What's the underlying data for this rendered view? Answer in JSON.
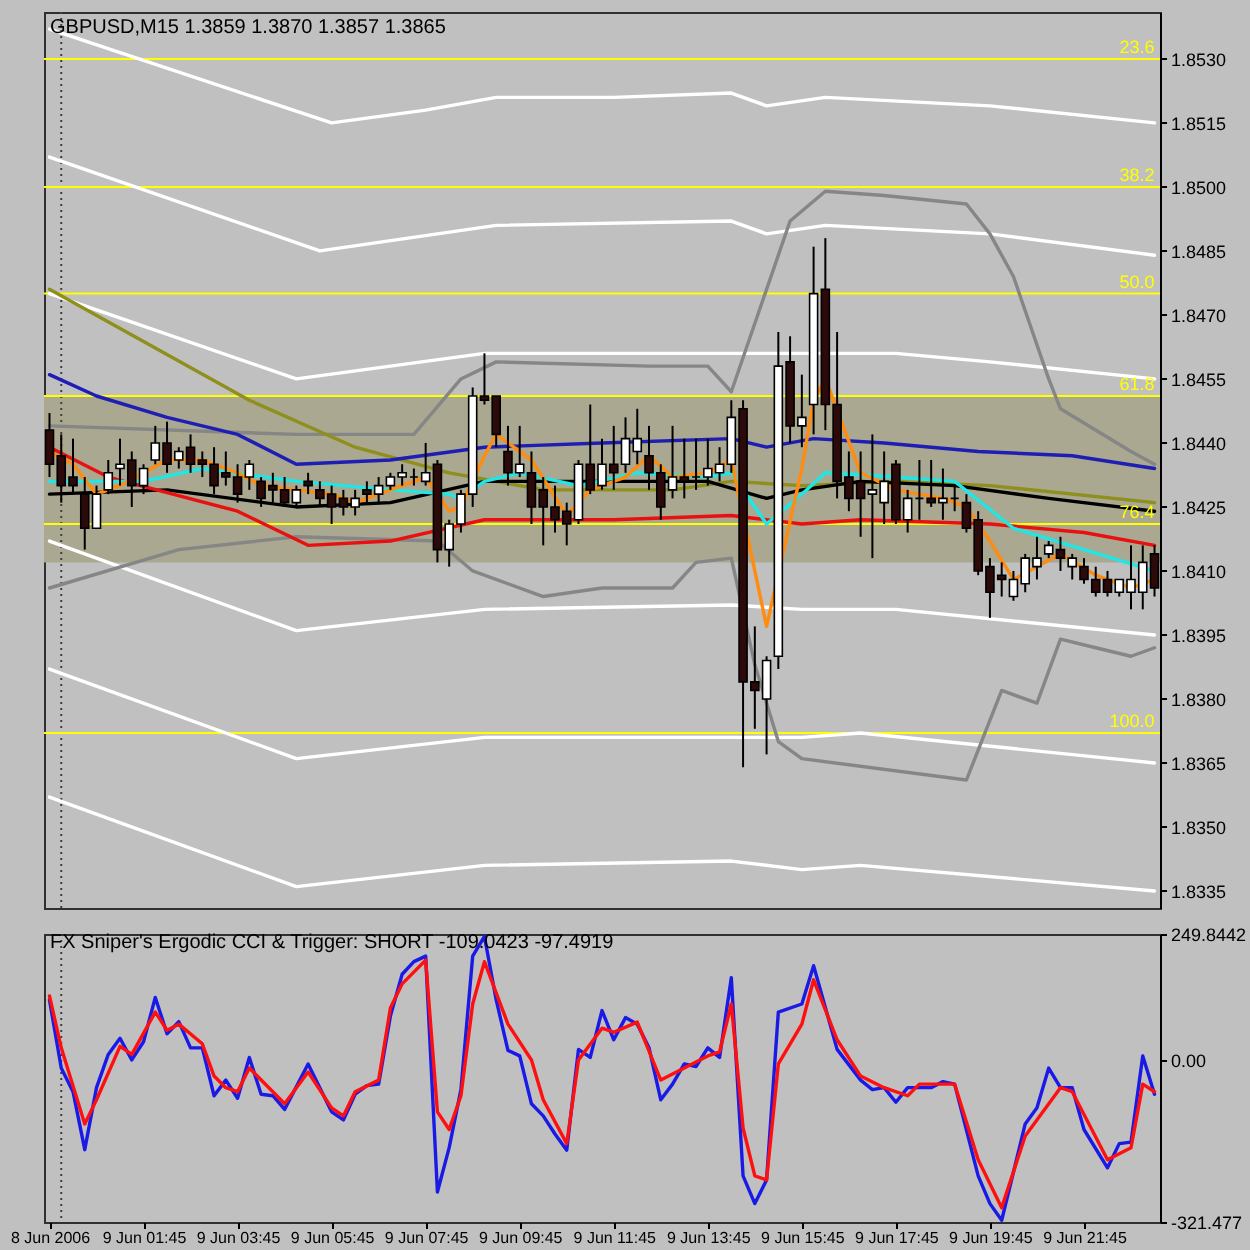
{
  "chart_data": [
    {
      "type": "candlestick",
      "title": "GBPUSD,M15 1.3859 1.3870 1.3857 1.3865",
      "x": [
        "2006-06-08T23:45",
        "2006-06-09T00:00",
        "2006-06-09T00:15",
        "2006-06-09T00:30",
        "2006-06-09T00:45",
        "2006-06-09T01:00",
        "2006-06-09T01:15",
        "2006-06-09T01:30",
        "2006-06-09T01:45",
        "2006-06-09T02:00",
        "2006-06-09T02:15",
        "2006-06-09T02:30",
        "2006-06-09T02:45",
        "2006-06-09T03:00",
        "2006-06-09T03:15",
        "2006-06-09T03:30",
        "2006-06-09T03:45",
        "2006-06-09T04:00",
        "2006-06-09T04:15",
        "2006-06-09T04:30",
        "2006-06-09T04:45",
        "2006-06-09T05:00",
        "2006-06-09T05:15",
        "2006-06-09T05:30",
        "2006-06-09T05:45",
        "2006-06-09T06:00",
        "2006-06-09T06:15",
        "2006-06-09T06:30",
        "2006-06-09T06:45",
        "2006-06-09T07:00",
        "2006-06-09T07:15",
        "2006-06-09T07:30",
        "2006-06-09T07:45",
        "2006-06-09T08:00",
        "2006-06-09T08:15",
        "2006-06-09T08:30",
        "2006-06-09T08:45",
        "2006-06-09T09:00",
        "2006-06-09T09:15",
        "2006-06-09T09:30",
        "2006-06-09T09:45",
        "2006-06-09T10:00",
        "2006-06-09T10:15",
        "2006-06-09T10:30",
        "2006-06-09T10:45",
        "2006-06-09T11:00",
        "2006-06-09T11:15",
        "2006-06-09T11:30",
        "2006-06-09T11:45",
        "2006-06-09T12:00",
        "2006-06-09T12:15",
        "2006-06-09T12:30",
        "2006-06-09T12:45",
        "2006-06-09T13:00",
        "2006-06-09T13:15",
        "2006-06-09T13:30",
        "2006-06-09T13:45",
        "2006-06-09T14:00",
        "2006-06-09T14:15",
        "2006-06-09T14:30",
        "2006-06-09T14:45",
        "2006-06-09T15:00",
        "2006-06-09T15:15",
        "2006-06-09T15:30",
        "2006-06-09T15:45",
        "2006-06-09T16:00",
        "2006-06-09T16:15",
        "2006-06-09T16:30",
        "2006-06-09T16:45",
        "2006-06-09T17:00",
        "2006-06-09T17:15",
        "2006-06-09T17:30",
        "2006-06-09T17:45",
        "2006-06-09T18:00",
        "2006-06-09T18:15",
        "2006-06-09T18:30",
        "2006-06-09T18:45",
        "2006-06-09T19:00",
        "2006-06-09T19:15",
        "2006-06-09T19:30",
        "2006-06-09T19:45",
        "2006-06-09T20:00",
        "2006-06-09T20:15",
        "2006-06-09T20:30",
        "2006-06-09T20:45",
        "2006-06-09T21:00",
        "2006-06-09T21:15",
        "2006-06-09T21:30",
        "2006-06-09T21:45",
        "2006-06-09T22:00",
        "2006-06-09T22:15",
        "2006-06-09T22:30",
        "2006-06-09T22:45",
        "2006-06-09T23:00",
        "2006-06-09T23:15"
      ],
      "ohlc": [
        [
          1.8443,
          1.8447,
          1.8432,
          1.8435
        ],
        [
          1.8437,
          1.8442,
          1.8426,
          1.843
        ],
        [
          1.8432,
          1.8441,
          1.8428,
          1.843
        ],
        [
          1.8428,
          1.8432,
          1.8415,
          1.842
        ],
        [
          1.842,
          1.843,
          1.842,
          1.8428
        ],
        [
          1.8429,
          1.8436,
          1.8428,
          1.8433
        ],
        [
          1.8434,
          1.8441,
          1.843,
          1.8435
        ],
        [
          1.8436,
          1.8438,
          1.8425,
          1.843
        ],
        [
          1.843,
          1.8435,
          1.8428,
          1.8434
        ],
        [
          1.8436,
          1.8444,
          1.8435,
          1.844
        ],
        [
          1.844,
          1.8445,
          1.8433,
          1.8435
        ],
        [
          1.8436,
          1.8439,
          1.8434,
          1.8438
        ],
        [
          1.8439,
          1.8442,
          1.8433,
          1.8435
        ],
        [
          1.8436,
          1.8438,
          1.8432,
          1.8435
        ],
        [
          1.8435,
          1.8439,
          1.8428,
          1.843
        ],
        [
          1.8433,
          1.8438,
          1.843,
          1.8432
        ],
        [
          1.8432,
          1.8435,
          1.8426,
          1.8428
        ],
        [
          1.8432,
          1.8436,
          1.8429,
          1.8435
        ],
        [
          1.8431,
          1.8432,
          1.8425,
          1.8427
        ],
        [
          1.843,
          1.8433,
          1.8426,
          1.8429
        ],
        [
          1.8429,
          1.8432,
          1.8425,
          1.8426
        ],
        [
          1.8426,
          1.843,
          1.8425,
          1.8429
        ],
        [
          1.8431,
          1.8433,
          1.8428,
          1.843
        ],
        [
          1.8429,
          1.8431,
          1.8425,
          1.8427
        ],
        [
          1.8428,
          1.843,
          1.8421,
          1.8425
        ],
        [
          1.8427,
          1.8429,
          1.8423,
          1.8425
        ],
        [
          1.8425,
          1.8429,
          1.8423,
          1.8427
        ],
        [
          1.8429,
          1.8431,
          1.8426,
          1.8428
        ],
        [
          1.8428,
          1.8432,
          1.8426,
          1.843
        ],
        [
          1.843,
          1.8433,
          1.8429,
          1.8432
        ],
        [
          1.8432,
          1.8435,
          1.843,
          1.8433
        ],
        [
          1.8432,
          1.8434,
          1.843,
          1.8432
        ],
        [
          1.8431,
          1.844,
          1.843,
          1.8433
        ],
        [
          1.8435,
          1.8436,
          1.8412,
          1.8415
        ],
        [
          1.8415,
          1.8422,
          1.8411,
          1.8421
        ],
        [
          1.8421,
          1.8429,
          1.8419,
          1.8428
        ],
        [
          1.8428,
          1.8453,
          1.8425,
          1.8451
        ],
        [
          1.8451,
          1.8461,
          1.8449,
          1.845
        ],
        [
          1.8451,
          1.8451,
          1.8439,
          1.8442
        ],
        [
          1.8438,
          1.8444,
          1.843,
          1.8433
        ],
        [
          1.8433,
          1.8444,
          1.8432,
          1.8435
        ],
        [
          1.8433,
          1.8438,
          1.8421,
          1.8425
        ],
        [
          1.8429,
          1.8432,
          1.8416,
          1.8425
        ],
        [
          1.8425,
          1.843,
          1.8419,
          1.8422
        ],
        [
          1.8424,
          1.8426,
          1.8416,
          1.8421
        ],
        [
          1.8422,
          1.8436,
          1.8421,
          1.8435
        ],
        [
          1.8435,
          1.8449,
          1.8428,
          1.8429
        ],
        [
          1.843,
          1.8441,
          1.8429,
          1.8435
        ],
        [
          1.8435,
          1.8444,
          1.8429,
          1.8433
        ],
        [
          1.8435,
          1.8446,
          1.8433,
          1.8441
        ],
        [
          1.8438,
          1.8448,
          1.8435,
          1.8441
        ],
        [
          1.8437,
          1.8444,
          1.8429,
          1.8433
        ],
        [
          1.8433,
          1.8435,
          1.8422,
          1.8425
        ],
        [
          1.8429,
          1.8444,
          1.8427,
          1.8432
        ],
        [
          1.8432,
          1.8441,
          1.8427,
          1.8431
        ],
        [
          1.8432,
          1.8441,
          1.8429,
          1.8432
        ],
        [
          1.8432,
          1.8441,
          1.843,
          1.8434
        ],
        [
          1.8433,
          1.8439,
          1.8431,
          1.8435
        ],
        [
          1.8435,
          1.845,
          1.8433,
          1.8446
        ],
        [
          1.8448,
          1.845,
          1.8364,
          1.8384
        ],
        [
          1.8384,
          1.8397,
          1.8373,
          1.8382
        ],
        [
          1.838,
          1.839,
          1.8367,
          1.8389
        ],
        [
          1.839,
          1.8466,
          1.8387,
          1.8458
        ],
        [
          1.8459,
          1.8465,
          1.844,
          1.8444
        ],
        [
          1.8444,
          1.8456,
          1.8439,
          1.8446
        ],
        [
          1.8449,
          1.8486,
          1.8442,
          1.8475
        ],
        [
          1.8476,
          1.8488,
          1.8443,
          1.8449
        ],
        [
          1.8449,
          1.8466,
          1.8427,
          1.8431
        ],
        [
          1.8432,
          1.8438,
          1.8424,
          1.8427
        ],
        [
          1.8431,
          1.8438,
          1.8418,
          1.8427
        ],
        [
          1.8428,
          1.8442,
          1.8413,
          1.8429
        ],
        [
          1.8426,
          1.8438,
          1.8421,
          1.8431
        ],
        [
          1.8435,
          1.8436,
          1.8421,
          1.8422
        ],
        [
          1.8422,
          1.8429,
          1.8419,
          1.8427
        ],
        [
          1.8427,
          1.8436,
          1.8422,
          1.8427
        ],
        [
          1.8427,
          1.8436,
          1.8425,
          1.8426
        ],
        [
          1.8426,
          1.8434,
          1.8422,
          1.8427
        ],
        [
          1.8427,
          1.843,
          1.8424,
          1.8427
        ],
        [
          1.8426,
          1.8428,
          1.8419,
          1.842
        ],
        [
          1.8422,
          1.8424,
          1.8409,
          1.841
        ],
        [
          1.8411,
          1.8413,
          1.8399,
          1.8405
        ],
        [
          1.8409,
          1.8412,
          1.8404,
          1.8408
        ],
        [
          1.8404,
          1.841,
          1.8403,
          1.8408
        ],
        [
          1.8407,
          1.8414,
          1.8405,
          1.8413
        ],
        [
          1.8411,
          1.8418,
          1.8408,
          1.8413
        ],
        [
          1.8414,
          1.8417,
          1.8413,
          1.8416
        ],
        [
          1.8415,
          1.8418,
          1.841,
          1.8413
        ],
        [
          1.8411,
          1.8414,
          1.8408,
          1.8413
        ],
        [
          1.8411,
          1.8413,
          1.8407,
          1.8408
        ],
        [
          1.8408,
          1.8411,
          1.8404,
          1.8405
        ],
        [
          1.8408,
          1.841,
          1.8404,
          1.8405
        ],
        [
          1.8405,
          1.8408,
          1.8404,
          1.8408
        ],
        [
          1.8405,
          1.8416,
          1.8401,
          1.8408
        ],
        [
          1.8405,
          1.8416,
          1.8401,
          1.8412
        ],
        [
          1.8414,
          1.8416,
          1.8404,
          1.8406
        ]
      ],
      "colors": [
        "#2c0a0a",
        "#2c0a0a",
        "#2c0a0a",
        "#2c0a0a",
        "#ffffff",
        "#ffffff",
        "#ffffff",
        "#2c0a0a",
        "#ffffff",
        "#ffffff",
        "#2c0a0a",
        "#ffffff",
        "#2c0a0a",
        "#2c0a0a",
        "#2c0a0a",
        "#2c0a0a",
        "#2c0a0a",
        "#ffffff",
        "#2c0a0a",
        "#2c0a0a",
        "#2c0a0a",
        "#ffffff",
        "#2c0a0a",
        "#2c0a0a",
        "#2c0a0a",
        "#2c0a0a",
        "#ffffff",
        "#2c0a0a",
        "#ffffff",
        "#ffffff",
        "#ffffff",
        "#000000",
        "#ffffff",
        "#2c0a0a",
        "#ffffff",
        "#ffffff",
        "#ffffff",
        "#2c0a0a",
        "#2c0a0a",
        "#2c0a0a",
        "#ffffff",
        "#2c0a0a",
        "#2c0a0a",
        "#2c0a0a",
        "#2c0a0a",
        "#ffffff",
        "#2c0a0a",
        "#ffffff",
        "#2c0a0a",
        "#ffffff",
        "#ffffff",
        "#2c0a0a",
        "#2c0a0a",
        "#ffffff",
        "#2c0a0a",
        "#000000",
        "#ffffff",
        "#ffffff",
        "#ffffff",
        "#2c0a0a",
        "#2c0a0a",
        "#ffffff",
        "#ffffff",
        "#2c0a0a",
        "#ffffff",
        "#ffffff",
        "#2c0a0a",
        "#2c0a0a",
        "#2c0a0a",
        "#2c0a0a",
        "#ffffff",
        "#ffffff",
        "#2c0a0a",
        "#ffffff",
        "#000000",
        "#2c0a0a",
        "#ffffff",
        "#000000",
        "#2c0a0a",
        "#2c0a0a",
        "#2c0a0a",
        "#2c0a0a",
        "#ffffff",
        "#ffffff",
        "#ffffff",
        "#ffffff",
        "#2c0a0a",
        "#ffffff",
        "#2c0a0a",
        "#2c0a0a",
        "#2c0a0a",
        "#ffffff",
        "#ffffff",
        "#ffffff",
        "#2c0a0a"
      ],
      "series": [
        {
          "type": "line",
          "color": "#ffffff",
          "x": [
            "2006-06-08T23:45",
            "2006-06-09T05:45",
            "2006-06-09T07:45",
            "2006-06-09T09:15",
            "2006-06-09T11:45",
            "2006-06-09T14:15",
            "2006-06-09T15:00",
            "2006-06-09T16:15",
            "2006-06-09T19:45",
            "2006-06-09T23:15"
          ],
          "values": [
            1.8537,
            1.8515,
            1.8518,
            1.8521,
            1.8521,
            1.8522,
            1.8519,
            1.8521,
            1.8519,
            1.8515
          ]
        },
        {
          "type": "line",
          "color": "#ffffff",
          "x": [
            "2006-06-08T23:45",
            "2006-06-09T05:30",
            "2006-06-09T09:15",
            "2006-06-09T14:15",
            "2006-06-09T15:00",
            "2006-06-09T16:15",
            "2006-06-09T19:45",
            "2006-06-09T23:15"
          ],
          "values": [
            1.8507,
            1.8485,
            1.8491,
            1.8492,
            1.8489,
            1.8491,
            1.8489,
            1.8484
          ]
        },
        {
          "type": "line",
          "color": "#ffffff",
          "x": [
            "2006-06-08T23:45",
            "2006-06-09T05:00",
            "2006-06-09T09:00",
            "2006-06-09T14:15",
            "2006-06-09T15:45",
            "2006-06-09T17:45",
            "2006-06-09T19:45",
            "2006-06-09T23:15"
          ],
          "values": [
            1.8475,
            1.8455,
            1.8461,
            1.8461,
            1.8461,
            1.8461,
            1.8459,
            1.8455
          ]
        },
        {
          "type": "line",
          "color": "#ffffff",
          "x": [
            "2006-06-08T23:45",
            "2006-06-09T05:00",
            "2006-06-09T09:00",
            "2006-06-09T14:15",
            "2006-06-09T15:45",
            "2006-06-09T17:45",
            "2006-06-09T23:15"
          ],
          "values": [
            1.8417,
            1.8396,
            1.8401,
            1.8402,
            1.8401,
            1.8401,
            1.8395
          ]
        },
        {
          "type": "line",
          "color": "#ffffff",
          "x": [
            "2006-06-08T23:45",
            "2006-06-09T05:00",
            "2006-06-09T09:00",
            "2006-06-09T14:15",
            "2006-06-09T15:45",
            "2006-06-09T17:00",
            "2006-06-09T23:15"
          ],
          "values": [
            1.8387,
            1.8366,
            1.8371,
            1.8371,
            1.8371,
            1.8372,
            1.8365
          ]
        },
        {
          "type": "line",
          "color": "#ffffff",
          "x": [
            "2006-06-08T23:45",
            "2006-06-09T05:00",
            "2006-06-09T09:00",
            "2006-06-09T14:15",
            "2006-06-09T15:45",
            "2006-06-09T17:00",
            "2006-06-09T23:15"
          ],
          "values": [
            1.8357,
            1.8336,
            1.8341,
            1.8342,
            1.834,
            1.8341,
            1.8335
          ]
        },
        {
          "type": "line",
          "color": "#868686",
          "x": [
            "2006-06-08T23:45",
            "2006-06-09T05:00",
            "2006-06-09T07:30",
            "2006-06-09T08:30",
            "2006-06-09T09:15",
            "2006-06-09T12:30",
            "2006-06-09T13:45",
            "2006-06-09T14:15",
            "2006-06-09T15:00",
            "2006-06-09T15:30",
            "2006-06-09T16:15",
            "2006-06-09T17:30",
            "2006-06-09T19:15",
            "2006-06-09T19:45",
            "2006-06-09T20:15",
            "2006-06-09T21:00",
            "2006-06-09T21:15",
            "2006-06-09T22:45",
            "2006-06-09T23:15"
          ],
          "values": [
            1.8444,
            1.8442,
            1.8442,
            1.8455,
            1.8459,
            1.8458,
            1.8458,
            1.8452,
            1.8476,
            1.8492,
            1.8499,
            1.8498,
            1.8496,
            1.8489,
            1.8479,
            1.8455,
            1.8448,
            1.8438,
            1.8435
          ]
        },
        {
          "type": "line",
          "color": "#868686",
          "x": [
            "2006-06-08T23:45",
            "2006-06-09T02:30",
            "2006-06-09T05:00",
            "2006-06-09T08:00",
            "2006-06-09T08:45",
            "2006-06-09T10:15",
            "2006-06-09T11:30",
            "2006-06-09T13:00",
            "2006-06-09T13:30",
            "2006-06-09T14:15",
            "2006-06-09T14:45",
            "2006-06-09T15:15",
            "2006-06-09T15:45",
            "2006-06-09T19:15",
            "2006-06-09T20:00",
            "2006-06-09T20:45",
            "2006-06-09T21:15",
            "2006-06-09T22:00",
            "2006-06-09T22:45",
            "2006-06-09T23:15"
          ],
          "values": [
            1.8406,
            1.8415,
            1.8418,
            1.8417,
            1.841,
            1.8404,
            1.8406,
            1.8406,
            1.8412,
            1.8413,
            1.8388,
            1.837,
            1.8366,
            1.8361,
            1.8382,
            1.8379,
            1.8394,
            1.8392,
            1.839,
            1.8392
          ]
        },
        {
          "type": "line",
          "color": "#8f8f1e",
          "x": [
            "2006-06-08T23:45",
            "2006-06-09T04:00",
            "2006-06-09T06:15",
            "2006-06-09T08:15",
            "2006-06-09T10:15",
            "2006-06-09T13:00",
            "2006-06-09T14:15",
            "2006-06-09T15:45",
            "2006-06-09T17:45",
            "2006-06-09T19:45",
            "2006-06-09T23:15"
          ],
          "values": [
            1.8476,
            1.845,
            1.8439,
            1.8433,
            1.8429,
            1.8429,
            1.8431,
            1.843,
            1.8431,
            1.843,
            1.8426
          ]
        },
        {
          "type": "line",
          "color": "#1e1eb4",
          "x": [
            "2006-06-08T23:45",
            "2006-06-09T00:45",
            "2006-06-09T02:15",
            "2006-06-09T03:45",
            "2006-06-09T05:00",
            "2006-06-09T07:00",
            "2006-06-09T09:00",
            "2006-06-09T11:30",
            "2006-06-09T14:15",
            "2006-06-09T15:00",
            "2006-06-09T16:00",
            "2006-06-09T17:30",
            "2006-06-09T19:30",
            "2006-06-09T21:30",
            "2006-06-09T23:15"
          ],
          "values": [
            1.8456,
            1.8451,
            1.8446,
            1.8442,
            1.8435,
            1.8436,
            1.8439,
            1.844,
            1.8441,
            1.8439,
            1.8441,
            1.844,
            1.8438,
            1.8437,
            1.8434
          ]
        },
        {
          "type": "line",
          "color": "#000000",
          "x": [
            "2006-06-08T23:45",
            "2006-06-09T02:15",
            "2006-06-09T05:00",
            "2006-06-09T07:00",
            "2006-06-09T09:00",
            "2006-06-09T11:45",
            "2006-06-09T13:45",
            "2006-06-09T15:00",
            "2006-06-09T15:45",
            "2006-06-09T17:00",
            "2006-06-09T19:00",
            "2006-06-09T21:00",
            "2006-06-09T23:15"
          ],
          "values": [
            1.8428,
            1.8429,
            1.8425,
            1.8426,
            1.8431,
            1.8431,
            1.8431,
            1.8427,
            1.8429,
            1.8431,
            1.843,
            1.8427,
            1.8424
          ]
        },
        {
          "type": "line",
          "color": "#e81010",
          "x": [
            "2006-06-08T23:45",
            "2006-06-09T01:00",
            "2006-06-09T03:45",
            "2006-06-09T05:15",
            "2006-06-09T07:00",
            "2006-06-09T09:00",
            "2006-06-09T11:45",
            "2006-06-09T14:15",
            "2006-06-09T15:45",
            "2006-06-09T17:00",
            "2006-06-09T19:45",
            "2006-06-09T21:45",
            "2006-06-09T23:15"
          ],
          "values": [
            1.8439,
            1.8432,
            1.8424,
            1.8416,
            1.8417,
            1.8422,
            1.8422,
            1.8423,
            1.8421,
            1.8422,
            1.8421,
            1.8419,
            1.8416
          ]
        },
        {
          "type": "line",
          "color": "#20e6e6",
          "x": [
            "2006-06-08T23:45",
            "2006-06-09T01:45",
            "2006-06-09T03:00",
            "2006-06-09T05:00",
            "2006-06-09T07:00",
            "2006-06-09T08:15",
            "2006-06-09T08:30",
            "2006-06-09T09:00",
            "2006-06-09T09:45",
            "2006-06-09T11:00",
            "2006-06-09T12:15",
            "2006-06-09T13:45",
            "2006-06-09T14:15",
            "2006-06-09T15:00",
            "2006-06-09T15:45",
            "2006-06-09T16:15",
            "2006-06-09T17:45",
            "2006-06-09T19:00",
            "2006-06-09T20:15",
            "2006-06-09T21:45",
            "2006-06-09T23:15"
          ],
          "values": [
            1.8431,
            1.8431,
            1.8434,
            1.8431,
            1.8429,
            1.8428,
            1.8427,
            1.8431,
            1.8433,
            1.843,
            1.8433,
            1.8432,
            1.8433,
            1.8421,
            1.8428,
            1.8433,
            1.8432,
            1.8431,
            1.842,
            1.8415,
            1.841
          ]
        },
        {
          "type": "line",
          "color": "#ff8c10",
          "x": [
            "2006-06-08T23:45",
            "2006-06-09T00:15",
            "2006-06-09T00:45",
            "2006-06-09T01:15",
            "2006-06-09T02:15",
            "2006-06-09T03:00",
            "2006-06-09T03:45",
            "2006-06-09T04:15",
            "2006-06-09T05:45",
            "2006-06-09T06:15",
            "2006-06-09T07:00",
            "2006-06-09T07:45",
            "2006-06-09T08:15",
            "2006-06-09T08:30",
            "2006-06-09T09:00",
            "2006-06-09T09:15",
            "2006-06-09T10:00",
            "2006-06-09T10:45",
            "2006-06-09T11:15",
            "2006-06-09T12:00",
            "2006-06-09T12:30",
            "2006-06-09T13:00",
            "2006-06-09T13:45",
            "2006-06-09T14:15",
            "2006-06-09T15:00",
            "2006-06-09T15:45",
            "2006-06-09T16:00",
            "2006-06-09T16:15",
            "2006-06-09T17:00",
            "2006-06-09T17:45",
            "2006-06-09T18:45",
            "2006-06-09T19:15",
            "2006-06-09T19:45",
            "2006-06-09T20:15",
            "2006-06-09T20:45",
            "2006-06-09T21:15",
            "2006-06-09T22:00",
            "2006-06-09T22:45",
            "2006-06-09T23:15"
          ],
          "values": [
            1.8438,
            1.8435,
            1.8428,
            1.843,
            1.8436,
            1.8436,
            1.8433,
            1.843,
            1.8428,
            1.8426,
            1.8429,
            1.8432,
            1.8424,
            1.8425,
            1.8437,
            1.8442,
            1.8436,
            1.8423,
            1.8429,
            1.8432,
            1.8437,
            1.8432,
            1.8433,
            1.8436,
            1.8397,
            1.8434,
            1.845,
            1.8455,
            1.8433,
            1.8429,
            1.8427,
            1.8425,
            1.8417,
            1.8408,
            1.8411,
            1.8414,
            1.8409,
            1.8406,
            1.8408
          ]
        }
      ],
      "bands": [
        {
          "axis": "y",
          "from": 1.8412,
          "to": 1.8451,
          "color": "#aaa890"
        }
      ],
      "ref_lines": [
        {
          "axis": "x",
          "value": "2006-06-09T00:00",
          "color": "#404040",
          "line_style": "dotted"
        },
        {
          "axis": "y",
          "value": 1.853,
          "color": "#ffff00"
        },
        {
          "axis": "y",
          "value": 1.85,
          "color": "#ffff00"
        },
        {
          "axis": "y",
          "value": 1.8475,
          "color": "#ffff00"
        },
        {
          "axis": "y",
          "value": 1.8451,
          "color": "#ffff00"
        },
        {
          "axis": "y",
          "value": 1.8421,
          "color": "#ffff00"
        },
        {
          "axis": "y",
          "value": 1.8372,
          "color": "#ffff00"
        }
      ],
      "annotations": [
        {
          "text": "23.6",
          "x": "2006-06-09T23:15",
          "y": 1.853
        },
        {
          "text": "38.2",
          "x": "2006-06-09T23:15",
          "y": 1.85
        },
        {
          "text": "50.0",
          "x": "2006-06-09T23:15",
          "y": 1.8475
        },
        {
          "text": "61.8",
          "x": "2006-06-09T23:15",
          "y": 1.8451
        },
        {
          "text": "76.4",
          "x": "2006-06-09T23:15",
          "y": 1.8421
        },
        {
          "text": "100.0",
          "x": "2006-06-09T23:15",
          "y": 1.8372
        }
      ],
      "xlim": [
        "2006-06-08T23:38",
        "2006-06-09T23:22"
      ],
      "ylim": [
        1.8331,
        1.8541
      ],
      "yticks": [
        {
          "value": 1.853,
          "label": "1.8530"
        },
        1.8515,
        {
          "value": 1.85,
          "label": "1.8500"
        },
        1.8485,
        {
          "value": 1.847,
          "label": "1.8470"
        },
        1.8455,
        {
          "value": 1.844,
          "label": "1.8440"
        },
        1.8425,
        {
          "value": 1.841,
          "label": "1.8410"
        },
        1.8395,
        {
          "value": 1.838,
          "label": "1.8380"
        },
        1.8365,
        {
          "value": 1.835,
          "label": "1.8350"
        },
        1.8335
      ],
      "tick_labels": "y"
    },
    {
      "type": "line",
      "title": "FX Sniper's Ergodic CCI & Trigger: SHORT -109.0423 -97.4919",
      "series": [
        {
          "color": "#1a1ae6",
          "x": [
            "2006-06-08T23:45",
            "2006-06-09T00:00",
            "2006-06-09T00:15",
            "2006-06-09T00:30",
            "2006-06-09T00:45",
            "2006-06-09T01:00",
            "2006-06-09T01:15",
            "2006-06-09T01:30",
            "2006-06-09T01:45",
            "2006-06-09T02:00",
            "2006-06-09T02:15",
            "2006-06-09T02:30",
            "2006-06-09T02:45",
            "2006-06-09T03:00",
            "2006-06-09T03:15",
            "2006-06-09T03:30",
            "2006-06-09T03:45",
            "2006-06-09T04:00",
            "2006-06-09T04:15",
            "2006-06-09T04:30",
            "2006-06-09T04:45",
            "2006-06-09T05:15",
            "2006-06-09T05:45",
            "2006-06-09T06:00",
            "2006-06-09T06:15",
            "2006-06-09T06:30",
            "2006-06-09T06:45",
            "2006-06-09T07:00",
            "2006-06-09T07:15",
            "2006-06-09T07:30",
            "2006-06-09T07:45",
            "2006-06-09T08:00",
            "2006-06-09T08:15",
            "2006-06-09T08:30",
            "2006-06-09T08:45",
            "2006-06-09T09:00",
            "2006-06-09T09:15",
            "2006-06-09T09:30",
            "2006-06-09T09:45",
            "2006-06-09T10:00",
            "2006-06-09T10:15",
            "2006-06-09T10:30",
            "2006-06-09T10:45",
            "2006-06-09T11:00",
            "2006-06-09T11:15",
            "2006-06-09T11:30",
            "2006-06-09T11:45",
            "2006-06-09T12:00",
            "2006-06-09T12:15",
            "2006-06-09T12:30",
            "2006-06-09T12:45",
            "2006-06-09T13:00",
            "2006-06-09T13:15",
            "2006-06-09T13:30",
            "2006-06-09T13:45",
            "2006-06-09T14:00",
            "2006-06-09T14:15",
            "2006-06-09T14:30",
            "2006-06-09T14:45",
            "2006-06-09T15:00",
            "2006-06-09T15:15",
            "2006-06-09T15:45",
            "2006-06-09T16:00",
            "2006-06-09T16:30",
            "2006-06-09T17:00",
            "2006-06-09T17:15",
            "2006-06-09T17:30",
            "2006-06-09T17:45",
            "2006-06-09T18:00",
            "2006-06-09T18:30",
            "2006-06-09T18:45",
            "2006-06-09T19:00",
            "2006-06-09T19:30",
            "2006-06-09T19:45",
            "2006-06-09T20:00",
            "2006-06-09T20:30",
            "2006-06-09T20:45",
            "2006-06-09T21:00",
            "2006-06-09T21:15",
            "2006-06-09T21:30",
            "2006-06-09T21:45",
            "2006-06-09T22:15",
            "2006-06-09T22:30",
            "2006-06-09T22:45",
            "2006-06-09T23:00",
            "2006-06-09T23:15"
          ],
          "values": [
            119,
            -16,
            -63,
            -178,
            -55,
            11,
            43,
            0,
            36,
            124,
            52,
            76,
            24,
            24,
            -71,
            -40,
            -76,
            5,
            -68,
            -71,
            -98,
            -8,
            -103,
            -119,
            -68,
            -51,
            -48,
            87,
            170,
            195,
            206,
            -262,
            -174,
            -59,
            206,
            245,
            119,
            19,
            8,
            -87,
            -111,
            -147,
            -179,
            21,
            5,
            98,
            40,
            84,
            71,
            24,
            -79,
            -48,
            -8,
            -13,
            24,
            5,
            163,
            -230,
            -285,
            -238,
            95,
            111,
            187,
            21,
            -40,
            -59,
            -55,
            -84,
            -55,
            -55,
            -43,
            -48,
            -230,
            -285,
            -318,
            -127,
            -95,
            -16,
            -55,
            -55,
            -138,
            -214,
            -166,
            -163,
            8,
            -68
          ]
        },
        {
          "color": "#ff1010",
          "x": [
            "2006-06-08T23:45",
            "2006-06-09T00:00",
            "2006-06-09T00:30",
            "2006-06-09T00:45",
            "2006-06-09T01:15",
            "2006-06-09T01:30",
            "2006-06-09T02:00",
            "2006-06-09T02:15",
            "2006-06-09T02:30",
            "2006-06-09T03:00",
            "2006-06-09T03:15",
            "2006-06-09T03:30",
            "2006-06-09T03:45",
            "2006-06-09T04:00",
            "2006-06-09T04:30",
            "2006-06-09T04:45",
            "2006-06-09T05:15",
            "2006-06-09T05:45",
            "2006-06-09T06:00",
            "2006-06-09T06:15",
            "2006-06-09T06:45",
            "2006-06-09T07:00",
            "2006-06-09T07:15",
            "2006-06-09T07:45",
            "2006-06-09T08:00",
            "2006-06-09T08:15",
            "2006-06-09T08:30",
            "2006-06-09T08:45",
            "2006-06-09T09:00",
            "2006-06-09T09:30",
            "2006-06-09T10:00",
            "2006-06-09T10:15",
            "2006-06-09T10:45",
            "2006-06-09T11:00",
            "2006-06-09T11:30",
            "2006-06-09T11:45",
            "2006-06-09T12:15",
            "2006-06-09T12:45",
            "2006-06-09T13:15",
            "2006-06-09T13:45",
            "2006-06-09T14:00",
            "2006-06-09T14:15",
            "2006-06-09T14:30",
            "2006-06-09T14:45",
            "2006-06-09T15:00",
            "2006-06-09T15:15",
            "2006-06-09T15:45",
            "2006-06-09T16:00",
            "2006-06-09T16:30",
            "2006-06-09T17:00",
            "2006-06-09T17:30",
            "2006-06-09T18:00",
            "2006-06-09T18:15",
            "2006-06-09T19:00",
            "2006-06-09T19:30",
            "2006-06-09T20:00",
            "2006-06-09T20:30",
            "2006-06-09T21:15",
            "2006-06-09T21:30",
            "2006-06-09T22:15",
            "2006-06-09T22:45",
            "2006-06-09T23:00",
            "2006-06-09T23:15"
          ],
          "values": [
            127,
            24,
            -127,
            -79,
            27,
            11,
            95,
            59,
            71,
            32,
            -32,
            -55,
            -63,
            -16,
            -63,
            -87,
            -24,
            -95,
            -111,
            -63,
            -40,
            103,
            151,
            198,
            -103,
            -138,
            -71,
            111,
            195,
            71,
            0,
            -79,
            -166,
            0,
            63,
            55,
            75,
            -40,
            -16,
            8,
            16,
            111,
            -135,
            -230,
            -238,
            -8,
            71,
            159,
            40,
            -32,
            -55,
            -71,
            -48,
            -48,
            -198,
            -293,
            -151,
            -55,
            -63,
            -198,
            -174,
            -48,
            -63
          ]
        }
      ],
      "ref_lines": [
        {
          "axis": "x",
          "value": "2006-06-09T00:00",
          "color": "#404040",
          "line_style": "dotted"
        }
      ],
      "xlim": [
        "2006-06-08T23:38",
        "2006-06-09T23:22"
      ],
      "ylim": [
        -321.477,
        249.8442
      ],
      "yticks": [
        249.8442,
        {
          "value": 0,
          "label": "0.00"
        },
        -321.477
      ],
      "xticks": [
        {
          "value": "2006-06-08T23:45",
          "label": "8 Jun 2006"
        },
        {
          "value": "2006-06-09T01:45",
          "label": "9 Jun 01:45"
        },
        {
          "value": "2006-06-09T03:45",
          "label": "9 Jun 03:45"
        },
        {
          "value": "2006-06-09T05:45",
          "label": "9 Jun 05:45"
        },
        {
          "value": "2006-06-09T07:45",
          "label": "9 Jun 07:45"
        },
        {
          "value": "2006-06-09T09:45",
          "label": "9 Jun 09:45"
        },
        {
          "value": "2006-06-09T11:45",
          "label": "9 Jun 11:45"
        },
        {
          "value": "2006-06-09T13:45",
          "label": "9 Jun 13:45"
        },
        {
          "value": "2006-06-09T15:45",
          "label": "9 Jun 15:45"
        },
        {
          "value": "2006-06-09T17:45",
          "label": "9 Jun 17:45"
        },
        {
          "value": "2006-06-09T19:45",
          "label": "9 Jun 19:45"
        },
        {
          "value": "2006-06-09T21:45",
          "label": "9 Jun 21:45"
        }
      ]
    }
  ]
}
